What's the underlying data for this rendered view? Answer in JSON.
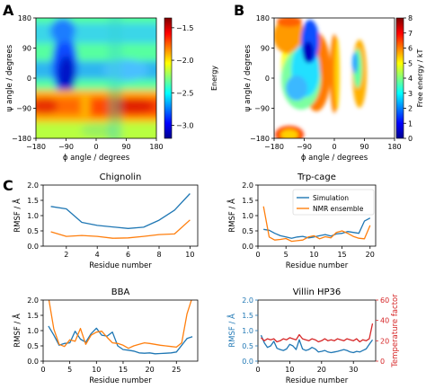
{
  "colors": {
    "simulation": "#1f77b4",
    "nmr": "#ff7f0e",
    "temperature": "#d62728",
    "axis": "#000000"
  },
  "panel_letters": [
    "A",
    "B",
    "C"
  ],
  "chart_data": [
    {
      "panel": "A",
      "type": "heatmap",
      "xlabel": "ϕ angle / degrees",
      "ylabel": "ψ angle / degrees",
      "xlim": [
        -180,
        180
      ],
      "ylim": [
        -180,
        180
      ],
      "xticks": [
        -180,
        -90,
        0,
        90,
        180
      ],
      "yticks": [
        -180,
        -90,
        0,
        90,
        180
      ],
      "colorbar": {
        "label": "Energy",
        "colormap": "jet",
        "range": [
          -3.2,
          -1.35
        ],
        "ticks": [
          -1.5,
          -2.0,
          -2.5,
          -3.0
        ],
        "tick_labels": [
          "−1.5",
          "−2.0",
          "−2.5",
          "−3.0"
        ]
      }
    },
    {
      "panel": "B",
      "type": "heatmap",
      "xlabel": "ϕ angle / degrees",
      "ylabel": "ψ angle / degrees",
      "xlim": [
        -180,
        180
      ],
      "ylim": [
        -180,
        180
      ],
      "xticks": [
        -180,
        -90,
        0,
        90,
        180
      ],
      "yticks": [
        -180,
        -90,
        0,
        90,
        180
      ],
      "colorbar": {
        "label": "Free energy / kT",
        "colormap": "jet",
        "range": [
          0,
          8
        ],
        "ticks": [
          0,
          1,
          2,
          3,
          4,
          5,
          6,
          7,
          8
        ]
      }
    },
    {
      "panel": "C1",
      "type": "line",
      "title": "Chignolin",
      "xlabel": "Residue number",
      "ylabel": "RMSF / Å",
      "xlim": [
        0.5,
        10.5
      ],
      "ylim": [
        0,
        2.0
      ],
      "xticks": [
        2,
        4,
        6,
        8,
        10
      ],
      "yticks": [
        0.0,
        0.5,
        1.0,
        1.5,
        2.0
      ],
      "ytick_labels": [
        "0.0",
        "0.5",
        "1.0",
        "1.5",
        "2.0"
      ],
      "x": [
        1,
        2,
        3,
        4,
        5,
        6,
        7,
        8,
        9,
        10
      ],
      "series": [
        {
          "key": "simulation",
          "values": [
            1.3,
            1.22,
            0.78,
            0.68,
            0.63,
            0.58,
            0.62,
            0.85,
            1.18,
            1.72
          ]
        },
        {
          "key": "nmr",
          "values": [
            0.47,
            0.32,
            0.35,
            0.32,
            0.26,
            0.27,
            0.32,
            0.38,
            0.4,
            0.86
          ]
        }
      ]
    },
    {
      "panel": "C2",
      "type": "line",
      "title": "Trp-cage",
      "xlabel": "Residue number",
      "ylabel": "RMSF / Å",
      "xlim": [
        0,
        21
      ],
      "ylim": [
        0,
        2.0
      ],
      "xticks": [
        0,
        5,
        10,
        15,
        20
      ],
      "yticks": [
        0.0,
        0.5,
        1.0,
        1.5,
        2.0
      ],
      "ytick_labels": [
        "0.0",
        "0.5",
        "1.0",
        "1.5",
        "2.0"
      ],
      "legend": {
        "position": "top-right",
        "entries": [
          "Simulation",
          "NMR ensemble"
        ]
      },
      "x": [
        1,
        2,
        3,
        4,
        5,
        6,
        7,
        8,
        9,
        10,
        11,
        12,
        13,
        14,
        15,
        16,
        17,
        18,
        19,
        20
      ],
      "series": [
        {
          "name": "Simulation",
          "key": "simulation",
          "values": [
            0.55,
            0.52,
            0.42,
            0.34,
            0.3,
            0.26,
            0.3,
            0.32,
            0.27,
            0.3,
            0.34,
            0.38,
            0.33,
            0.4,
            0.42,
            0.48,
            0.45,
            0.42,
            0.82,
            0.92
          ]
        },
        {
          "name": "NMR ensemble",
          "key": "nmr",
          "values": [
            1.3,
            0.3,
            0.2,
            0.22,
            0.25,
            0.16,
            0.18,
            0.2,
            0.3,
            0.34,
            0.24,
            0.31,
            0.27,
            0.45,
            0.5,
            0.42,
            0.32,
            0.26,
            0.24,
            0.68
          ]
        }
      ]
    },
    {
      "panel": "C3",
      "type": "line",
      "title": "BBA",
      "xlabel": "Residue number",
      "ylabel": "RMSF / Å",
      "xlim": [
        0,
        29
      ],
      "ylim": [
        0,
        2.0
      ],
      "xticks": [
        0,
        5,
        10,
        15,
        20,
        25
      ],
      "yticks": [
        0.0,
        0.5,
        1.0,
        1.5,
        2.0
      ],
      "ytick_labels": [
        "0.0",
        "0.5",
        "1.0",
        "1.5",
        "2.0"
      ],
      "x": [
        1,
        2,
        3,
        4,
        5,
        6,
        7,
        8,
        9,
        10,
        11,
        12,
        13,
        14,
        15,
        16,
        17,
        18,
        19,
        20,
        21,
        22,
        23,
        24,
        25,
        26,
        27,
        28
      ],
      "series": [
        {
          "key": "simulation",
          "values": [
            1.15,
            0.85,
            0.52,
            0.58,
            0.6,
            0.98,
            0.72,
            0.62,
            0.9,
            1.08,
            0.85,
            0.82,
            0.95,
            0.5,
            0.38,
            0.36,
            0.33,
            0.27,
            0.26,
            0.27,
            0.24,
            0.25,
            0.26,
            0.27,
            0.3,
            0.52,
            0.74,
            0.8
          ]
        },
        {
          "key": "nmr",
          "values": [
            2.1,
            1.05,
            0.55,
            0.48,
            0.7,
            0.65,
            1.07,
            0.55,
            0.85,
            0.95,
            0.98,
            0.78,
            0.6,
            0.58,
            0.52,
            0.42,
            0.5,
            0.55,
            0.6,
            0.58,
            0.55,
            0.52,
            0.5,
            0.48,
            0.46,
            0.6,
            1.55,
            2.1
          ]
        }
      ]
    },
    {
      "panel": "C4",
      "type": "line",
      "title": "Villin HP36",
      "xlabel": "Residue number",
      "ylabel": "RMSF / Å",
      "ylabel_right": "Temperature factor",
      "xlim": [
        0,
        37
      ],
      "ylim": [
        0,
        2.0
      ],
      "ylim_right": [
        0,
        60
      ],
      "xticks": [
        0,
        10,
        20,
        30
      ],
      "yticks": [
        0.0,
        0.5,
        1.0,
        1.5,
        2.0
      ],
      "ytick_labels": [
        "0.0",
        "0.5",
        "1.0",
        "1.5",
        "2.0"
      ],
      "yticks_right": [
        0,
        20,
        40,
        60
      ],
      "x": [
        1,
        2,
        3,
        4,
        5,
        6,
        7,
        8,
        9,
        10,
        11,
        12,
        13,
        14,
        15,
        16,
        17,
        18,
        19,
        20,
        21,
        22,
        23,
        24,
        25,
        26,
        27,
        28,
        29,
        30,
        31,
        32,
        33,
        34,
        35,
        36
      ],
      "series": [
        {
          "key": "simulation",
          "values": [
            0.85,
            0.6,
            0.45,
            0.5,
            0.65,
            0.42,
            0.38,
            0.35,
            0.4,
            0.55,
            0.5,
            0.38,
            0.7,
            0.4,
            0.35,
            0.38,
            0.45,
            0.4,
            0.3,
            0.32,
            0.35,
            0.3,
            0.28,
            0.3,
            0.32,
            0.35,
            0.38,
            0.35,
            0.3,
            0.28,
            0.32,
            0.3,
            0.35,
            0.4,
            0.55,
            0.7
          ]
        },
        {
          "key": "temperature",
          "axis": "right",
          "values": [
            23,
            20,
            22,
            21,
            22,
            19,
            20,
            22,
            21,
            23,
            22,
            21,
            26,
            22,
            21,
            20,
            22,
            21,
            19,
            20,
            22,
            20,
            21,
            20,
            22,
            21,
            20,
            22,
            21,
            20,
            22,
            19,
            21,
            20,
            22,
            37
          ]
        }
      ]
    }
  ]
}
